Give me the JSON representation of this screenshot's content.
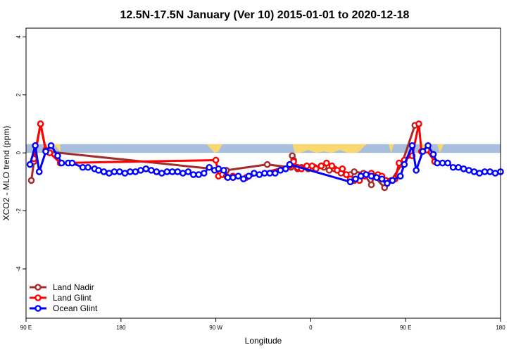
{
  "chart_data": {
    "type": "line",
    "title": "12.5N-17.5N January (Ver 10)   2015-01-01 to 2020-12-18",
    "xlabel": "Longitude",
    "ylabel": "XCO2 - MLO trend (ppm)",
    "xlim": [
      0,
      360
    ],
    "ylim": [
      -5.7,
      4.3
    ],
    "x_ticks": [
      {
        "value": 0,
        "label": "90 E"
      },
      {
        "value": 72,
        "label": "180"
      },
      {
        "value": 144,
        "label": "90 W"
      },
      {
        "value": 216,
        "label": "0"
      },
      {
        "value": 288,
        "label": "90 E"
      },
      {
        "value": 360,
        "label": "180"
      }
    ],
    "y_ticks": [
      {
        "value": -4,
        "label": "-4"
      },
      {
        "value": -2,
        "label": "-2"
      },
      {
        "value": 0,
        "label": "0"
      },
      {
        "value": 2,
        "label": "2"
      },
      {
        "value": 4,
        "label": "4"
      }
    ],
    "grid": false,
    "legend": "bottom-left",
    "background_band": {
      "y_range": [
        0,
        0.3
      ],
      "color": "#a8bedd"
    },
    "land_fill_color": "#f8d870",
    "land_segments": [
      {
        "x": [
          16,
          19,
          22,
          24,
          26
        ],
        "y": [
          0,
          0.3,
          0.25,
          0.15,
          0
        ]
      },
      {
        "x": [
          137,
          140,
          143,
          146,
          149
        ],
        "y": [
          0.3,
          0.15,
          0.0,
          0.05,
          0.3
        ]
      },
      {
        "x": [
          202,
          204,
          208,
          214,
          220,
          226,
          232,
          238,
          244,
          250,
          253,
          256,
          259
        ],
        "y": [
          0.3,
          0.0,
          0.0,
          0.1,
          0.0,
          0.05,
          0.0,
          0.1,
          0.0,
          0.0,
          0.05,
          0.2,
          0.3
        ]
      },
      {
        "x": [
          275,
          277,
          279
        ],
        "y": [
          0.3,
          0.0,
          0.3
        ]
      },
      {
        "x": [
          299,
          303,
          308
        ],
        "y": [
          0.3,
          0.0,
          0.3
        ]
      },
      {
        "x": [
          312,
          314,
          317
        ],
        "y": [
          0.3,
          0.0,
          0.3
        ]
      }
    ],
    "series": [
      {
        "name": "Land Nadir",
        "color": "#a52a2a",
        "x": [
          4,
          6,
          11,
          15,
          152,
          183,
          201,
          202,
          203,
          206,
          209,
          214,
          219,
          224,
          226,
          230,
          234,
          239,
          246,
          249,
          256,
          262,
          264,
          272,
          277,
          285,
          295
        ],
        "y": [
          -0.95,
          -0.3,
          1.0,
          0.05,
          -0.6,
          -0.4,
          -0.5,
          -0.1,
          -0.25,
          -0.55,
          -0.5,
          -0.55,
          -0.5,
          -0.45,
          -0.5,
          -0.6,
          -0.55,
          -0.7,
          -0.75,
          -0.65,
          -0.7,
          -1.1,
          -0.8,
          -1.2,
          -0.95,
          -0.4,
          0.95
        ]
      },
      {
        "name": "Land Glint",
        "color": "#ff0000",
        "x": [
          6,
          11,
          15,
          18,
          26,
          144,
          146,
          149,
          152,
          157,
          167,
          200,
          203,
          206,
          209,
          213,
          217,
          220,
          224,
          228,
          232,
          236,
          240,
          243,
          246,
          249,
          253,
          257,
          262,
          264,
          267,
          270,
          273,
          280,
          283,
          287,
          293,
          298,
          300,
          304,
          310
        ],
        "y": [
          -0.2,
          1.0,
          0.1,
          0.0,
          -0.35,
          -0.25,
          -0.8,
          -0.75,
          -0.8,
          -0.8,
          -0.85,
          -0.45,
          -0.3,
          -0.5,
          -0.55,
          -0.45,
          -0.45,
          -0.55,
          -0.45,
          -0.35,
          -0.45,
          -0.6,
          -0.55,
          -0.75,
          -0.9,
          -0.95,
          -0.95,
          -0.8,
          -0.7,
          -0.8,
          -0.75,
          -0.8,
          -0.95,
          -0.9,
          -0.35,
          -0.25,
          -0.1,
          1.0,
          0.05,
          0.1,
          -0.3
        ]
      },
      {
        "name": "Ocean Glint",
        "color": "#0000ff",
        "x": [
          3,
          7,
          10,
          15,
          19,
          24,
          27,
          32,
          35,
          43,
          47,
          52,
          55,
          59,
          63,
          67,
          71,
          75,
          79,
          83,
          87,
          91,
          95,
          99,
          103,
          107,
          111,
          115,
          119,
          123,
          127,
          131,
          135,
          139,
          143,
          146,
          150,
          153,
          157,
          161,
          165,
          169,
          173,
          177,
          181,
          185,
          189,
          193,
          197,
          200,
          246,
          250,
          254,
          258,
          262,
          266,
          270,
          274,
          278,
          284,
          287,
          293,
          296,
          301,
          305,
          309,
          312,
          316,
          320,
          324,
          328,
          332,
          336,
          340,
          344,
          348,
          352,
          356,
          360
        ],
        "y": [
          -0.4,
          0.25,
          -0.65,
          0.05,
          0.25,
          -0.1,
          -0.35,
          -0.35,
          -0.35,
          -0.5,
          -0.5,
          -0.55,
          -0.6,
          -0.65,
          -0.7,
          -0.65,
          -0.65,
          -0.7,
          -0.65,
          -0.65,
          -0.6,
          -0.55,
          -0.6,
          -0.65,
          -0.7,
          -0.65,
          -0.65,
          -0.65,
          -0.7,
          -0.65,
          -0.75,
          -0.75,
          -0.7,
          -0.5,
          -0.6,
          -0.55,
          -0.6,
          -0.85,
          -0.85,
          -0.8,
          -0.9,
          -0.8,
          -0.7,
          -0.75,
          -0.7,
          -0.7,
          -0.7,
          -0.6,
          -0.55,
          -0.4,
          -1.0,
          -0.9,
          -0.8,
          -0.75,
          -0.8,
          -0.85,
          -0.9,
          -1.05,
          -0.95,
          -0.8,
          -0.4,
          0.25,
          -0.6,
          0.05,
          0.25,
          -0.05,
          -0.35,
          -0.35,
          -0.35,
          -0.5,
          -0.5,
          -0.55,
          -0.6,
          -0.65,
          -0.7,
          -0.65,
          -0.65,
          -0.7,
          -0.65
        ]
      }
    ]
  }
}
